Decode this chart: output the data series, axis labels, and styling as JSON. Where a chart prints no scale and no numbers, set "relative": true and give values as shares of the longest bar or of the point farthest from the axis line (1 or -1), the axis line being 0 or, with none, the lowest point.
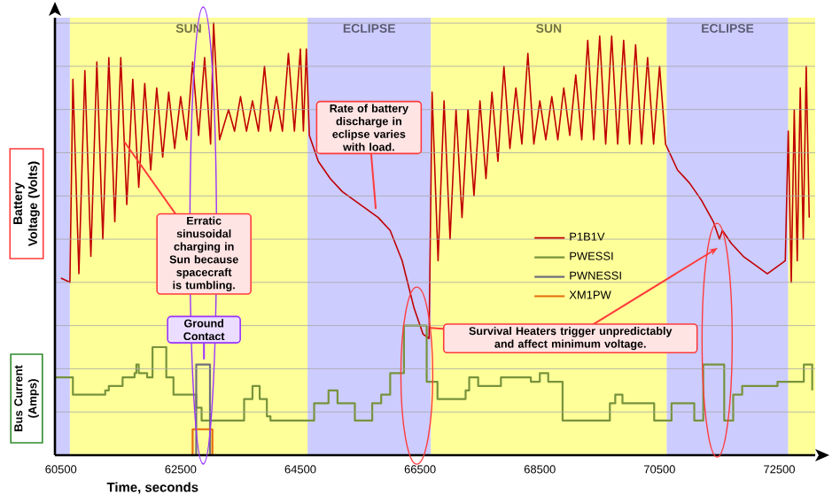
{
  "chart_data": {
    "type": "line",
    "relative": true,
    "xlabel": "Time, seconds",
    "ylabel": "Battery Voltage (Volts)",
    "xlim": [
      60400,
      73100
    ],
    "xticks": [
      60500,
      62500,
      64500,
      66500,
      68500,
      70500,
      72500
    ],
    "grid": "y",
    "legend": "center",
    "marker": "none",
    "line_style": "solid",
    "bands": [
      {
        "axis": "x",
        "from": 60400,
        "to": 60650,
        "color": "#ccccff"
      },
      {
        "axis": "x",
        "from": 60650,
        "to": 64620,
        "color": "#ffff99",
        "label": "SUN"
      },
      {
        "axis": "x",
        "from": 64620,
        "to": 66680,
        "color": "#ccccff",
        "label": "ECLIPSE"
      },
      {
        "axis": "x",
        "from": 66680,
        "to": 70620,
        "color": "#ffff99",
        "label": "SUN"
      },
      {
        "axis": "x",
        "from": 70620,
        "to": 72650,
        "color": "#ccccff",
        "label": "ECLIPSE"
      },
      {
        "axis": "x",
        "from": 72650,
        "to": 73100,
        "color": "#ffff99"
      }
    ],
    "annotations": [
      "Erratic sinusoidal charging in Sun because spacecraft is tumbling.",
      "Rate of battery discharge in eclipse varies with load.",
      "Ground Contact",
      "Survival Heaters trigger unpredictably and affect minimum voltage.",
      "Bus Current (Amps)"
    ],
    "series": [
      {
        "name": "P1B1V",
        "color": "#c00000",
        "x": [
          60500,
          60650,
          60700,
          60800,
          60900,
          61000,
          61100,
          61200,
          61300,
          61400,
          61500,
          61600,
          61700,
          61800,
          61900,
          62000,
          62100,
          62200,
          62300,
          62400,
          62500,
          62600,
          62700,
          62800,
          62900,
          63000,
          63050,
          63150,
          63300,
          63400,
          63500,
          63600,
          63700,
          63800,
          63900,
          64000,
          64100,
          64200,
          64300,
          64400,
          64500,
          64550,
          64600,
          64650,
          64800,
          65000,
          65200,
          65400,
          65600,
          65800,
          66000,
          66200,
          66400,
          66550,
          66650,
          66700,
          66800,
          66900,
          67000,
          67100,
          67200,
          67300,
          67400,
          67500,
          67600,
          67700,
          67800,
          67900,
          68000,
          68100,
          68200,
          68300,
          68400,
          68500,
          68600,
          68700,
          68800,
          68900,
          69000,
          69100,
          69200,
          69300,
          69400,
          69500,
          69600,
          69700,
          69800,
          69900,
          70000,
          70100,
          70200,
          70300,
          70400,
          70500,
          70600,
          70800,
          71000,
          71200,
          71400,
          71500,
          71550,
          71700,
          71900,
          72100,
          72300,
          72500,
          72600,
          72650,
          72700,
          72750,
          72800,
          72850,
          72900,
          72950,
          73000
        ],
        "values": [
          0.41,
          0.4,
          0.87,
          0.42,
          0.89,
          0.46,
          0.91,
          0.5,
          0.92,
          0.54,
          0.92,
          0.58,
          0.87,
          0.62,
          0.86,
          0.66,
          0.85,
          0.69,
          0.84,
          0.71,
          0.83,
          0.73,
          0.91,
          0.74,
          0.92,
          0.72,
          1.0,
          0.73,
          0.8,
          0.75,
          0.83,
          0.75,
          0.82,
          0.75,
          0.9,
          0.75,
          0.83,
          0.75,
          0.93,
          0.75,
          0.94,
          0.75,
          0.94,
          0.74,
          0.68,
          0.64,
          0.61,
          0.59,
          0.57,
          0.55,
          0.52,
          0.45,
          0.34,
          0.28,
          0.27,
          0.84,
          0.45,
          0.82,
          0.5,
          0.8,
          0.55,
          0.8,
          0.6,
          0.82,
          0.64,
          0.84,
          0.68,
          0.9,
          0.71,
          0.85,
          0.72,
          0.93,
          0.72,
          0.82,
          0.73,
          0.83,
          0.73,
          0.85,
          0.74,
          0.88,
          0.73,
          0.96,
          0.73,
          0.97,
          0.72,
          0.97,
          0.72,
          0.96,
          0.72,
          0.95,
          0.72,
          0.92,
          0.72,
          0.9,
          0.72,
          0.66,
          0.63,
          0.59,
          0.54,
          0.5,
          0.52,
          0.49,
          0.46,
          0.44,
          0.42,
          0.44,
          0.45,
          0.75,
          0.4,
          0.8,
          0.45,
          0.85,
          0.5,
          0.9,
          0.55
        ]
      },
      {
        "name": "PWESSI",
        "color": "#77933c",
        "type": "step",
        "x": [
          60400,
          60700,
          61240,
          61300,
          61530,
          61730,
          61760,
          61800,
          61940,
          62030,
          62260,
          62380,
          62760,
          62850,
          63560,
          63700,
          63820,
          63940,
          64000,
          64730,
          64970,
          65120,
          65410,
          65700,
          65850,
          66000,
          66230,
          66610,
          66790,
          67260,
          67320,
          67470,
          67850,
          68350,
          68500,
          68640,
          68880,
          69530,
          69670,
          69760,
          69880,
          70410,
          70700,
          71080,
          71230,
          71580,
          71730,
          71880,
          72470,
          72910,
          73050
        ],
        "values": [
          0.18,
          0.14,
          0.15,
          0.16,
          0.18,
          0.19,
          0.21,
          0.19,
          0.18,
          0.25,
          0.18,
          0.14,
          0.11,
          0.08,
          0.13,
          0.16,
          0.13,
          0.09,
          0.08,
          0.12,
          0.15,
          0.12,
          0.08,
          0.12,
          0.14,
          0.19,
          0.3,
          0.17,
          0.13,
          0.15,
          0.18,
          0.16,
          0.18,
          0.17,
          0.19,
          0.17,
          0.08,
          0.08,
          0.12,
          0.14,
          0.12,
          0.08,
          0.12,
          0.08,
          0.21,
          0.08,
          0.14,
          0.16,
          0.17,
          0.21,
          0.15
        ]
      },
      {
        "name": "PWNESSI",
        "color": "#6f6f7f",
        "type": "step",
        "x": [
          62740,
          62760,
          62990
        ],
        "values": [
          0,
          0.21,
          0
        ]
      },
      {
        "name": "XM1PW",
        "color": "#e46c0a",
        "type": "step",
        "x": [
          62700,
          62700,
          63030,
          63030
        ],
        "values": [
          0,
          0.06,
          0.06,
          0
        ]
      }
    ]
  }
}
